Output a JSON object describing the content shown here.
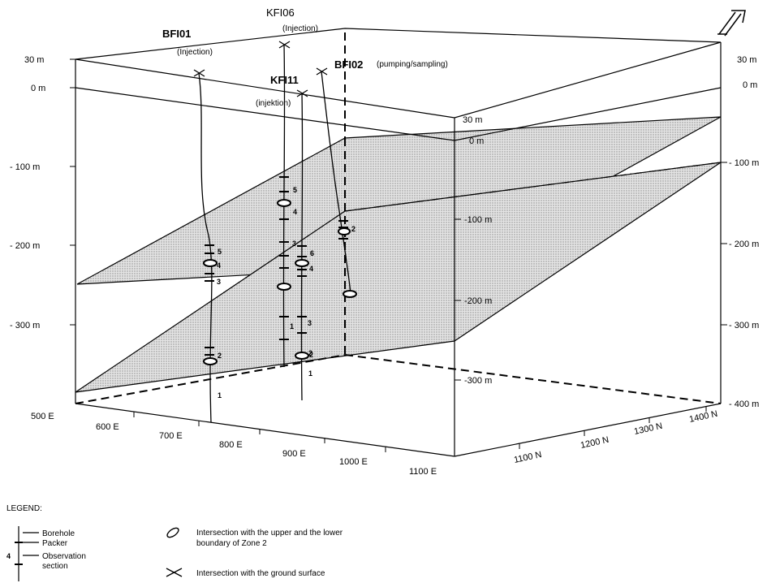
{
  "north_symbol": "north-arrow-icon",
  "left_depths": [
    "30 m",
    "0 m",
    "- 100 m",
    "- 200 m",
    "- 300 m"
  ],
  "right_depths": [
    "30 m",
    "0 m",
    "- 100 m",
    "- 200 m",
    "- 300 m",
    "- 400 m"
  ],
  "inner_depths": [
    "30 m",
    "0 m",
    "-100 m",
    "-200 m",
    "-300 m"
  ],
  "east_ticks": [
    "500 E",
    "600 E",
    "700 E",
    "800 E",
    "900 E",
    "1000 E",
    "1100 E"
  ],
  "north_ticks": [
    "1100 N",
    "1200 N",
    "1300 N",
    "1400 N"
  ],
  "boreholes": [
    {
      "name": "BFI01",
      "role": "(Injection)"
    },
    {
      "name": "KFI06",
      "role": "(Injection)"
    },
    {
      "name": "KFI11",
      "role": "(injektion)"
    },
    {
      "name": "BFI02",
      "role": "(pumping/sampling)"
    }
  ],
  "section_numbers": {
    "bfi01": [
      "5",
      "4",
      "3",
      "2",
      "1"
    ],
    "kfi06": [
      "5",
      "4",
      "3",
      "1",
      "2"
    ],
    "kfi11": [
      "6",
      "4",
      "3",
      "2",
      "1"
    ],
    "bfi02": [
      "2"
    ]
  },
  "legend": {
    "title": "LEGEND:",
    "borehole": "Borehole",
    "packer": "Packer",
    "observation_1": "Observation",
    "observation_2": "section",
    "example_number": "4",
    "zone_1": "Intersection with the upper and the lower",
    "zone_2": "boundary of Zone 2",
    "ground": "Intersection with the ground surface"
  },
  "colors": {
    "line": "#000000",
    "zone_fill": "#c8c8c8"
  }
}
